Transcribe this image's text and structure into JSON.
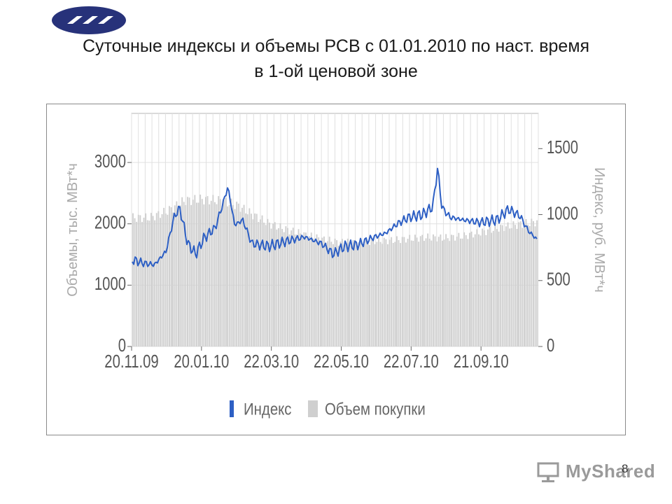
{
  "page": {
    "title_line1": "Суточные индексы и объемы РСВ с 01.01.2010 по наст. время",
    "title_line2": "в 1-ой ценовой зоне",
    "page_number": "8",
    "watermark": "MyShared",
    "logo_icon": "company-logo-icon"
  },
  "chart_data": {
    "type": "bar+line",
    "title": "",
    "y_left": {
      "label": "Объемы, тыс. МВт*ч",
      "range": [
        0,
        3800
      ],
      "ticks": [
        0,
        1000,
        2000,
        3000
      ]
    },
    "y_right": {
      "label": "Индекс, руб. МВт*ч",
      "range": [
        0,
        1767
      ],
      "ticks": [
        0,
        500,
        1000,
        1500
      ]
    },
    "x_tick_labels": [
      "20.11.09",
      "20.01.10",
      "22.03.10",
      "22.05.10",
      "22.07.10",
      "21.09.10"
    ],
    "x_range": [
      "20.11.09",
      "10.11.10"
    ],
    "grid": true,
    "legend_position": "bottom",
    "legend": [
      "Индекс",
      "Объем покупки"
    ],
    "series": [
      {
        "name": "Объем покупки",
        "axis": "left",
        "kind": "bar",
        "color": "#cfcfcf",
        "points": [
          [
            "20.11.09",
            2100
          ],
          [
            "05.12.09",
            2100
          ],
          [
            "20.12.09",
            2200
          ],
          [
            "05.01.10",
            2380
          ],
          [
            "20.01.10",
            2400
          ],
          [
            "05.02.10",
            2380
          ],
          [
            "20.02.10",
            2300
          ],
          [
            "05.03.10",
            2150
          ],
          [
            "20.03.10",
            2000
          ],
          [
            "05.04.10",
            1900
          ],
          [
            "20.04.10",
            1820
          ],
          [
            "05.05.10",
            1750
          ],
          [
            "20.05.10",
            1700
          ],
          [
            "05.06.10",
            1700
          ],
          [
            "20.06.10",
            1720
          ],
          [
            "05.07.10",
            1730
          ],
          [
            "20.07.10",
            1760
          ],
          [
            "05.08.10",
            1780
          ],
          [
            "20.08.10",
            1770
          ],
          [
            "05.09.10",
            1800
          ],
          [
            "20.09.10",
            1860
          ],
          [
            "05.10.10",
            1930
          ],
          [
            "20.10.10",
            1980
          ],
          [
            "10.11.10",
            2040
          ]
        ]
      },
      {
        "name": "Индекс",
        "axis": "right",
        "kind": "line",
        "color": "#2d5fc4",
        "points": [
          [
            "20.11.09",
            660
          ],
          [
            "01.12.09",
            630
          ],
          [
            "10.12.09",
            620
          ],
          [
            "20.12.09",
            720
          ],
          [
            "27.12.09",
            980
          ],
          [
            "01.01.10",
            1050
          ],
          [
            "08.01.10",
            780
          ],
          [
            "15.01.10",
            700
          ],
          [
            "22.01.10",
            820
          ],
          [
            "01.02.10",
            900
          ],
          [
            "08.02.10",
            1090
          ],
          [
            "12.02.10",
            1210
          ],
          [
            "18.02.10",
            920
          ],
          [
            "25.02.10",
            960
          ],
          [
            "05.03.10",
            780
          ],
          [
            "20.03.10",
            760
          ],
          [
            "05.04.10",
            800
          ],
          [
            "20.04.10",
            830
          ],
          [
            "05.05.10",
            780
          ],
          [
            "15.05.10",
            700
          ],
          [
            "25.05.10",
            760
          ],
          [
            "05.06.10",
            770
          ],
          [
            "20.06.10",
            830
          ],
          [
            "30.06.10",
            860
          ],
          [
            "10.07.10",
            930
          ],
          [
            "20.07.10",
            980
          ],
          [
            "01.08.10",
            1000
          ],
          [
            "10.08.10",
            1060
          ],
          [
            "14.08.10",
            1350
          ],
          [
            "18.08.10",
            1050
          ],
          [
            "25.08.10",
            980
          ],
          [
            "05.09.10",
            960
          ],
          [
            "20.09.10",
            940
          ],
          [
            "05.10.10",
            960
          ],
          [
            "15.10.10",
            1040
          ],
          [
            "25.10.10",
            990
          ],
          [
            "01.11.10",
            880
          ],
          [
            "10.11.10",
            800
          ]
        ]
      }
    ]
  }
}
